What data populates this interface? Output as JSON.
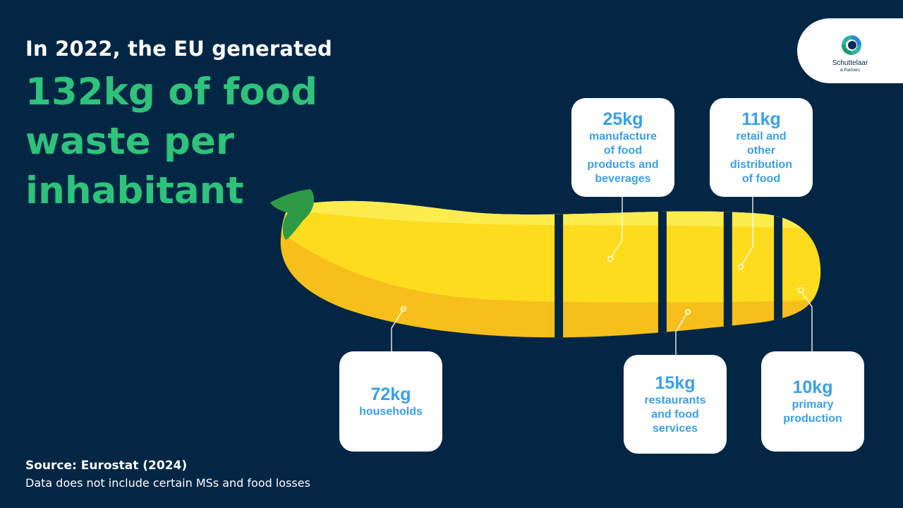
{
  "heading": "In 2022, the EU generated",
  "headline_lines": [
    "132kg of food",
    "waste per",
    "inhabitant"
  ],
  "logo": {
    "name": "Schuttelaar",
    "sub": "& Partners",
    "icon": "schuttelaar-logo-icon"
  },
  "source": "Source: Eurostat (2024)",
  "note": "Data does not include certain MSs and food losses",
  "colors": {
    "background": "#032645",
    "headline": "#2ec27a",
    "card_text": "#3aa0e8",
    "zucchini_light": "#fde23a",
    "zucchini_dark": "#f6bf1c",
    "stem": "#2f9a45"
  },
  "chart_data": {
    "type": "bar",
    "unit": "kg",
    "total": 132,
    "categories": [
      "households",
      "manufacture of food products and beverages",
      "restaurants and food services",
      "retail and other distribution of food",
      "primary production"
    ],
    "values": [
      72,
      25,
      15,
      11,
      10
    ],
    "labels": [
      "72kg",
      "25kg",
      "15kg",
      "11kg",
      "10kg"
    ],
    "label_lines": [
      [
        "households"
      ],
      [
        "manufacture",
        "of food",
        "products and",
        "beverages"
      ],
      [
        "restaurants",
        "and food",
        "services"
      ],
      [
        "retail and",
        "other",
        "distribution",
        "of food"
      ],
      [
        "primary",
        "production"
      ]
    ]
  }
}
